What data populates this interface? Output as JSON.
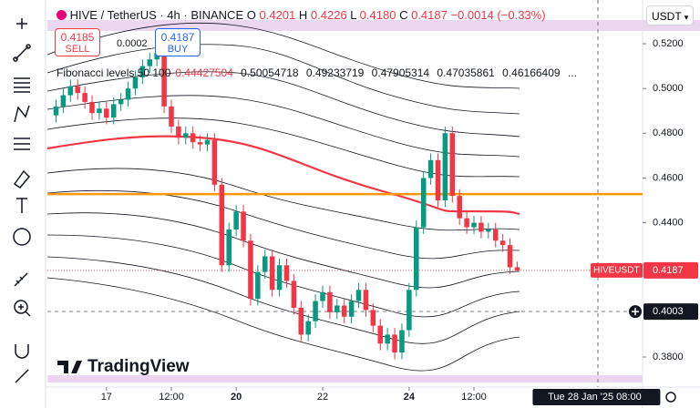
{
  "header": {
    "symbol": "HIVE / TetherUS · 4h · BINANCE",
    "ohlc": [
      {
        "label": "O",
        "value": "0.4201"
      },
      {
        "label": "H",
        "value": "0.4226"
      },
      {
        "label": "L",
        "value": "0.4180"
      },
      {
        "label": "C",
        "value": "0.4187"
      }
    ],
    "change": "−0.0014 (−0.33%)"
  },
  "trade": {
    "sell_price": "0.4185",
    "sell_label": "SELL",
    "spread": "0.0002",
    "buy_price": "0.4187",
    "buy_label": "BUY"
  },
  "indicator": {
    "name": "Fibonacci levels 50 100",
    "values": [
      {
        "text": "0.44427504",
        "color": "#f23645"
      },
      {
        "text": "0.50054718",
        "color": "#131722"
      },
      {
        "text": "0.49233719",
        "color": "#131722"
      },
      {
        "text": "0.47905314",
        "color": "#131722"
      },
      {
        "text": "0.47035861",
        "color": "#131722"
      },
      {
        "text": "0.46166409",
        "color": "#131722"
      },
      {
        "text": "...",
        "color": "#131722"
      }
    ]
  },
  "currency": "USDT",
  "logo": "TradingView",
  "chart_data": {
    "type": "candlestick",
    "up_color": "#089981",
    "down_color": "#f23645",
    "xlim": [
      -1.2,
      81.4
    ],
    "ylim": [
      0.3686,
      0.5363
    ],
    "xticks": [
      {
        "value": 7,
        "label": "17"
      },
      {
        "value": 16,
        "label": "12:00"
      },
      {
        "value": 25,
        "label": "20"
      },
      {
        "value": 37,
        "label": "22"
      },
      {
        "value": 49,
        "label": "24"
      },
      {
        "value": 58,
        "label": "12:00"
      }
    ],
    "yticks": [
      {
        "value": 0.52,
        "label": "0.5200"
      },
      {
        "value": 0.5,
        "label": "0.5000"
      },
      {
        "value": 0.48,
        "label": "0.4800"
      },
      {
        "value": 0.46,
        "label": "0.4600"
      },
      {
        "value": 0.44,
        "label": "0.4400"
      },
      {
        "value": 0.38,
        "label": "0.3800"
      }
    ],
    "hline": {
      "value": 0.4528,
      "color": "#ff9800"
    },
    "last_price": {
      "name": "HIVEUSDT",
      "value": 0.4187,
      "label": "0.4187"
    },
    "crosshair": {
      "value": 0.4003,
      "label": "0.4003",
      "x": 75,
      "x_label": "Tue 28 Jan '25   08:00"
    },
    "candles": [
      [
        0.488,
        0.495,
        0.485,
        0.492
      ],
      [
        0.492,
        0.5,
        0.489,
        0.497
      ],
      [
        0.497,
        0.504,
        0.494,
        0.501
      ],
      [
        0.501,
        0.504,
        0.495,
        0.498
      ],
      [
        0.498,
        0.501,
        0.491,
        0.494
      ],
      [
        0.494,
        0.497,
        0.486,
        0.489
      ],
      [
        0.489,
        0.494,
        0.486,
        0.491
      ],
      [
        0.491,
        0.494,
        0.484,
        0.487
      ],
      [
        0.487,
        0.496,
        0.484,
        0.493
      ],
      [
        0.493,
        0.498,
        0.49,
        0.495
      ],
      [
        0.495,
        0.503,
        0.492,
        0.5
      ],
      [
        0.5,
        0.508,
        0.497,
        0.505
      ],
      [
        0.505,
        0.513,
        0.502,
        0.51
      ],
      [
        0.51,
        0.516,
        0.507,
        0.513
      ],
      [
        0.513,
        0.519,
        0.51,
        0.516
      ],
      [
        0.516,
        0.519,
        0.489,
        0.492
      ],
      [
        0.492,
        0.495,
        0.48,
        0.483
      ],
      [
        0.483,
        0.486,
        0.475,
        0.478
      ],
      [
        0.478,
        0.483,
        0.475,
        0.48
      ],
      [
        0.48,
        0.483,
        0.473,
        0.476
      ],
      [
        0.476,
        0.479,
        0.472,
        0.475
      ],
      [
        0.475,
        0.48,
        0.472,
        0.477
      ],
      [
        0.477,
        0.48,
        0.454,
        0.457
      ],
      [
        0.457,
        0.46,
        0.418,
        0.421
      ],
      [
        0.421,
        0.44,
        0.418,
        0.437
      ],
      [
        0.437,
        0.448,
        0.434,
        0.445
      ],
      [
        0.445,
        0.448,
        0.429,
        0.432
      ],
      [
        0.432,
        0.435,
        0.403,
        0.406
      ],
      [
        0.406,
        0.421,
        0.403,
        0.418
      ],
      [
        0.418,
        0.428,
        0.415,
        0.425
      ],
      [
        0.425,
        0.428,
        0.407,
        0.41
      ],
      [
        0.41,
        0.424,
        0.407,
        0.421
      ],
      [
        0.421,
        0.424,
        0.411,
        0.414
      ],
      [
        0.414,
        0.417,
        0.399,
        0.402
      ],
      [
        0.402,
        0.405,
        0.387,
        0.39
      ],
      [
        0.39,
        0.399,
        0.387,
        0.396
      ],
      [
        0.396,
        0.408,
        0.393,
        0.405
      ],
      [
        0.405,
        0.412,
        0.402,
        0.409
      ],
      [
        0.409,
        0.412,
        0.397,
        0.4
      ],
      [
        0.4,
        0.406,
        0.397,
        0.403
      ],
      [
        0.403,
        0.406,
        0.395,
        0.398
      ],
      [
        0.398,
        0.408,
        0.395,
        0.405
      ],
      [
        0.405,
        0.413,
        0.402,
        0.41
      ],
      [
        0.41,
        0.413,
        0.398,
        0.401
      ],
      [
        0.401,
        0.404,
        0.391,
        0.394
      ],
      [
        0.394,
        0.397,
        0.383,
        0.386
      ],
      [
        0.386,
        0.393,
        0.383,
        0.39
      ],
      [
        0.39,
        0.393,
        0.379,
        0.382
      ],
      [
        0.382,
        0.395,
        0.379,
        0.392
      ],
      [
        0.392,
        0.413,
        0.389,
        0.41
      ],
      [
        0.41,
        0.441,
        0.407,
        0.438
      ],
      [
        0.438,
        0.463,
        0.435,
        0.46
      ],
      [
        0.46,
        0.471,
        0.457,
        0.468
      ],
      [
        0.468,
        0.471,
        0.447,
        0.45
      ],
      [
        0.45,
        0.483,
        0.447,
        0.48
      ],
      [
        0.48,
        0.483,
        0.449,
        0.452
      ],
      [
        0.452,
        0.455,
        0.439,
        0.442
      ],
      [
        0.442,
        0.445,
        0.435,
        0.438
      ],
      [
        0.438,
        0.443,
        0.435,
        0.44
      ],
      [
        0.44,
        0.443,
        0.433,
        0.436
      ],
      [
        0.436,
        0.44,
        0.433,
        0.437
      ],
      [
        0.437,
        0.44,
        0.429,
        0.432
      ],
      [
        0.432,
        0.435,
        0.427,
        0.43
      ],
      [
        0.43,
        0.433,
        0.4171,
        0.4201
      ],
      [
        0.4201,
        0.4226,
        0.418,
        0.4187
      ]
    ]
  }
}
